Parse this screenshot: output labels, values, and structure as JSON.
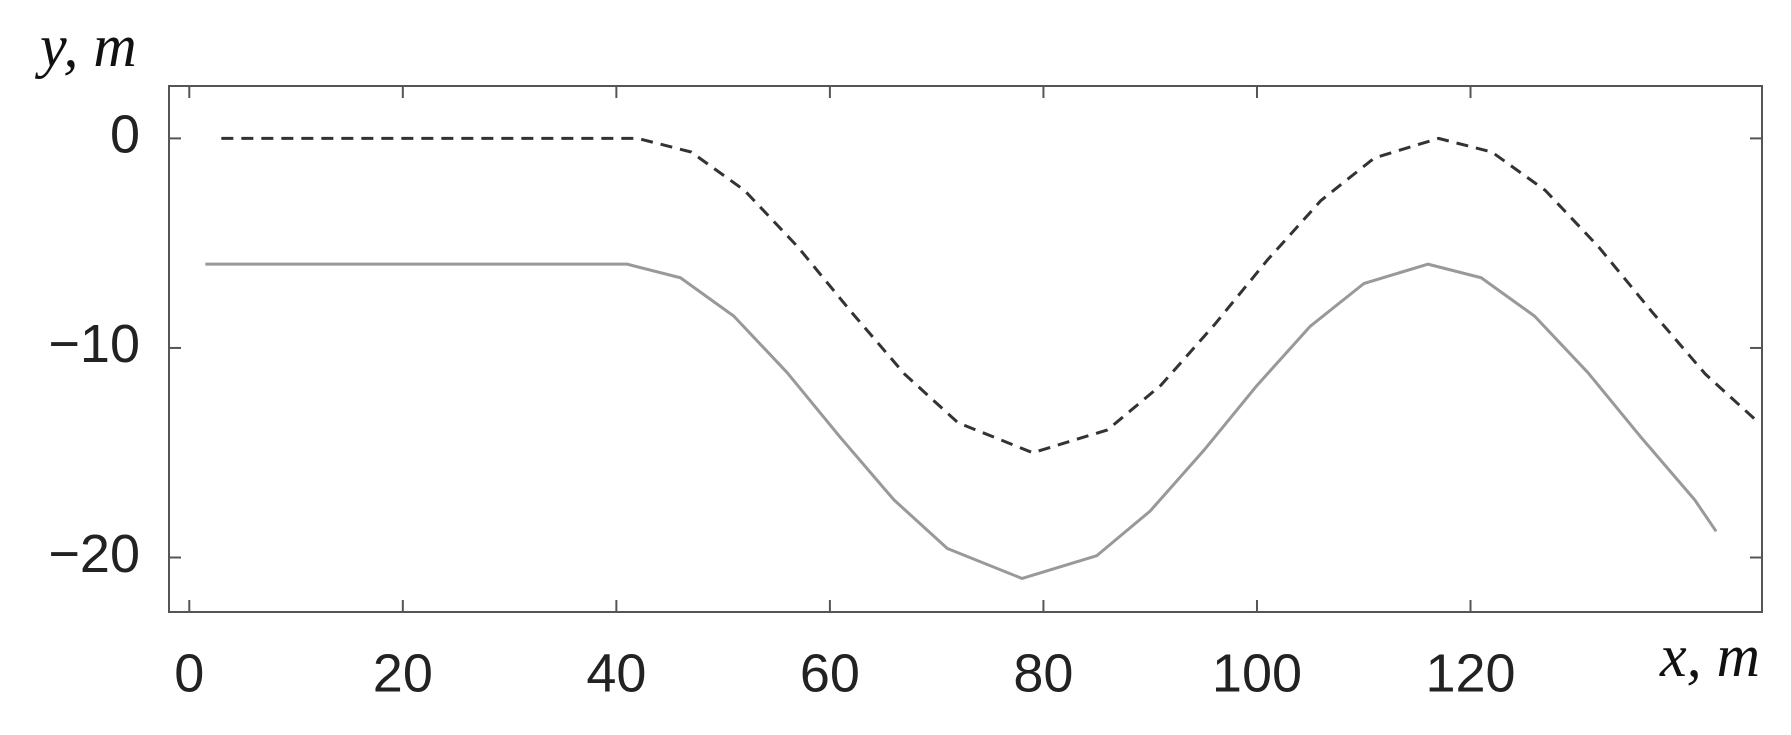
{
  "chart_data": {
    "type": "line",
    "x_label": "x, m",
    "y_label": "y, m",
    "xlim": [
      -1.9,
      147.3
    ],
    "ylim": [
      -22.6,
      2.5
    ],
    "xticks": [
      0,
      20,
      40,
      60,
      80,
      100,
      120
    ],
    "yticks": [
      0,
      {
        "value": -10,
        "label": "−10"
      },
      {
        "value": -20,
        "label": "−20"
      }
    ],
    "grid": false,
    "series": [
      {
        "color": "#333333",
        "style": "dashed",
        "x": [
          3,
          42,
          47,
          52,
          57,
          62,
          67,
          72,
          79,
          86,
          91,
          96,
          101,
          106,
          111,
          117,
          122,
          127,
          132,
          137,
          142,
          147
        ],
        "values": [
          0,
          0,
          -0.65,
          -2.48,
          -5.18,
          -8.28,
          -11.25,
          -13.57,
          -15,
          -13.91,
          -11.78,
          -8.9,
          -5.79,
          -2.96,
          -0.93,
          0,
          -0.65,
          -2.48,
          -5.18,
          -8.28,
          -11.25,
          -13.57
        ]
      },
      {
        "color": "#999999",
        "style": "solid",
        "x": [
          1.5,
          41,
          46,
          51,
          56,
          61,
          66,
          71,
          78,
          85,
          90,
          95,
          100,
          105,
          110,
          116,
          121,
          126,
          131,
          136,
          141,
          143
        ],
        "values": [
          -6,
          -6,
          -6.65,
          -8.48,
          -11.18,
          -14.28,
          -17.25,
          -19.57,
          -21,
          -19.91,
          -17.78,
          -14.9,
          -11.79,
          -8.96,
          -6.93,
          -6,
          -6.65,
          -8.48,
          -11.18,
          -14.28,
          -17.25,
          -18.75
        ]
      }
    ]
  }
}
